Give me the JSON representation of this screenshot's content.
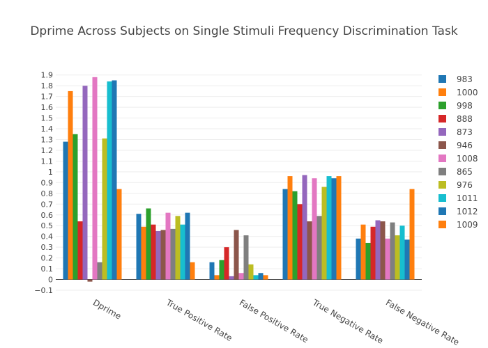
{
  "chart_data": {
    "type": "bar",
    "title": "Dprime Across Subjects on Single Stimuli Frequency Discrimination Task",
    "xlabel": "",
    "ylabel": "",
    "ylim": [
      -0.1,
      1.95
    ],
    "yticks": [
      -0.1,
      0,
      0.1,
      0.2,
      0.3,
      0.4,
      0.5,
      0.6,
      0.7,
      0.8,
      0.9,
      1,
      1.1,
      1.2,
      1.3,
      1.4,
      1.5,
      1.6,
      1.7,
      1.8,
      1.9
    ],
    "ytick_labels": [
      "−0.1",
      "0",
      "0.1",
      "0.2",
      "0.3",
      "0.4",
      "0.5",
      "0.6",
      "0.7",
      "0.8",
      "0.9",
      "1",
      "1.1",
      "1.2",
      "1.3",
      "1.4",
      "1.5",
      "1.6",
      "1.7",
      "1.8",
      "1.9"
    ],
    "grid": true,
    "legend_position": "right",
    "categories": [
      "Dprime",
      "True Positive Rate",
      "False Positive Rate",
      "True Negative Rate",
      "False Negative Rate"
    ],
    "series": [
      {
        "name": "983",
        "color": "#1f77b4",
        "values": [
          1.28,
          0.61,
          0.16,
          0.84,
          0.38
        ]
      },
      {
        "name": "1000",
        "color": "#ff7f0e",
        "values": [
          1.75,
          0.49,
          0.04,
          0.96,
          0.51
        ]
      },
      {
        "name": "998",
        "color": "#2ca02c",
        "values": [
          1.35,
          0.66,
          0.18,
          0.82,
          0.34
        ]
      },
      {
        "name": "888",
        "color": "#d62728",
        "values": [
          0.54,
          0.51,
          0.3,
          0.7,
          0.49
        ]
      },
      {
        "name": "873",
        "color": "#9467bd",
        "values": [
          1.8,
          0.45,
          0.03,
          0.97,
          0.55
        ]
      },
      {
        "name": "946",
        "color": "#8c564b",
        "values": [
          -0.02,
          0.46,
          0.46,
          0.54,
          0.54
        ]
      },
      {
        "name": "1008",
        "color": "#e377c2",
        "values": [
          1.88,
          0.62,
          0.06,
          0.94,
          0.38
        ]
      },
      {
        "name": "865",
        "color": "#7f7f7f",
        "values": [
          0.16,
          0.47,
          0.41,
          0.59,
          0.53
        ]
      },
      {
        "name": "976",
        "color": "#bcbd22",
        "values": [
          1.31,
          0.59,
          0.14,
          0.86,
          0.41
        ]
      },
      {
        "name": "1011",
        "color": "#17becf",
        "values": [
          1.84,
          0.51,
          0.04,
          0.96,
          0.5
        ]
      },
      {
        "name": "1012",
        "color": "#1f77b4",
        "values": [
          1.85,
          0.62,
          0.06,
          0.94,
          0.37
        ]
      },
      {
        "name": "1009",
        "color": "#ff7f0e",
        "values": [
          0.84,
          0.16,
          0.04,
          0.96,
          0.84
        ]
      }
    ]
  }
}
